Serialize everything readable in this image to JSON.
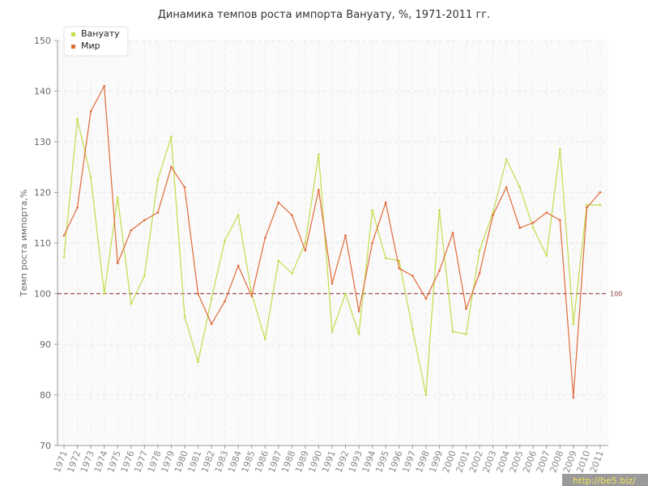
{
  "chart_data": {
    "type": "line",
    "title": "Динамика темпов роста импорта Вануату, %, 1971-2011 гг.",
    "ylabel": "Темп роста импорта,%",
    "xlabel": "",
    "ylim": [
      70,
      150
    ],
    "yticks": [
      70,
      80,
      90,
      100,
      110,
      120,
      130,
      140,
      150
    ],
    "grid": true,
    "legend_position": "top-left",
    "x": [
      "1971",
      "1972",
      "1973",
      "1974",
      "1975",
      "1976",
      "1977",
      "1978",
      "1979",
      "1980",
      "1981",
      "1982",
      "1983",
      "1984",
      "1985",
      "1986",
      "1987",
      "1988",
      "1989",
      "1990",
      "1991",
      "1992",
      "1993",
      "1994",
      "1995",
      "1996",
      "1997",
      "1998",
      "1999",
      "2000",
      "2001",
      "2002",
      "2003",
      "2004",
      "2005",
      "2006",
      "2007",
      "2008",
      "2009",
      "2010",
      "2011"
    ],
    "series": [
      {
        "name": "Вануату",
        "color": "#c2dc4a",
        "values": [
          107.2,
          134.5,
          123.0,
          100.0,
          119.0,
          98.0,
          103.5,
          122.5,
          131.0,
          95.5,
          86.5,
          99.0,
          110.5,
          115.5,
          100.0,
          91.0,
          106.5,
          104.0,
          110.0,
          127.5,
          92.5,
          100.0,
          92.0,
          116.5,
          107.0,
          106.5,
          93.0,
          80.0,
          116.5,
          92.5,
          92.0,
          108.5,
          116.0,
          126.5,
          121.0,
          113.0,
          107.5,
          128.5,
          94.0,
          117.5,
          117.5
        ]
      },
      {
        "name": "Мир",
        "color": "#e06a3a",
        "values": [
          111.5,
          117.0,
          136.0,
          141.0,
          106.0,
          112.5,
          114.5,
          116.0,
          125.0,
          121.0,
          100.0,
          94.0,
          98.5,
          105.5,
          99.5,
          111.0,
          118.0,
          115.5,
          108.5,
          120.5,
          102.0,
          111.5,
          96.5,
          110.0,
          118.0,
          105.0,
          103.5,
          99.0,
          104.5,
          112.0,
          97.0,
          104.0,
          115.5,
          121.0,
          113.0,
          114.0,
          116.0,
          114.5,
          79.5,
          117.0,
          120.0
        ]
      }
    ],
    "reference_line": {
      "value": 100,
      "label": "100",
      "color": "#a05050"
    }
  },
  "watermark": "http://be5.biz/"
}
